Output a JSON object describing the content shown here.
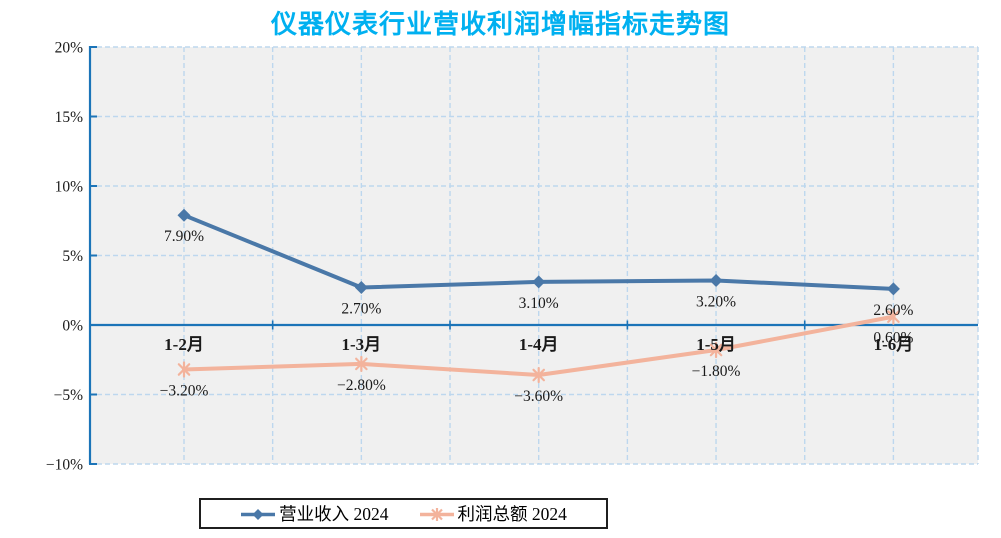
{
  "title": {
    "text": "仪器仪表行业营收利润增幅指标走势图"
  },
  "colors": {
    "title": "#00B0F0",
    "axis": "#1B74B8",
    "grid": "#BDD7EE",
    "plot_bg": "#F0F0F0",
    "label_text": "#1A1A1A",
    "legend_border": "#1F1F1F"
  },
  "chart_data": {
    "type": "line",
    "title": "仪器仪表行业营收利润增幅指标走势图",
    "categories": [
      "1-2月",
      "1-3月",
      "1-4月",
      "1-5月",
      "1-6月"
    ],
    "series": [
      {
        "name": "营业收入 2024",
        "marker": "diamond",
        "color": "#4A78A8",
        "values": [
          7.9,
          2.7,
          3.1,
          3.2,
          2.6
        ],
        "point_labels": [
          "7.90%",
          "2.70%",
          "3.10%",
          "3.20%",
          "2.60%"
        ]
      },
      {
        "name": "利润总额 2024",
        "marker": "asterisk",
        "color": "#F3B39C",
        "values": [
          -3.2,
          -2.8,
          -3.6,
          -1.8,
          0.6
        ],
        "point_labels": [
          "−3.20%",
          "−2.80%",
          "−3.60%",
          "−1.80%",
          "0.60%"
        ]
      }
    ],
    "ylim": [
      -10,
      20
    ],
    "ytick_step": 5,
    "ytick_labels": [
      "20%",
      "15%",
      "10%",
      "5%",
      "0%",
      "−5%",
      "−10%"
    ],
    "grid": true,
    "legend_position": "bottom"
  }
}
